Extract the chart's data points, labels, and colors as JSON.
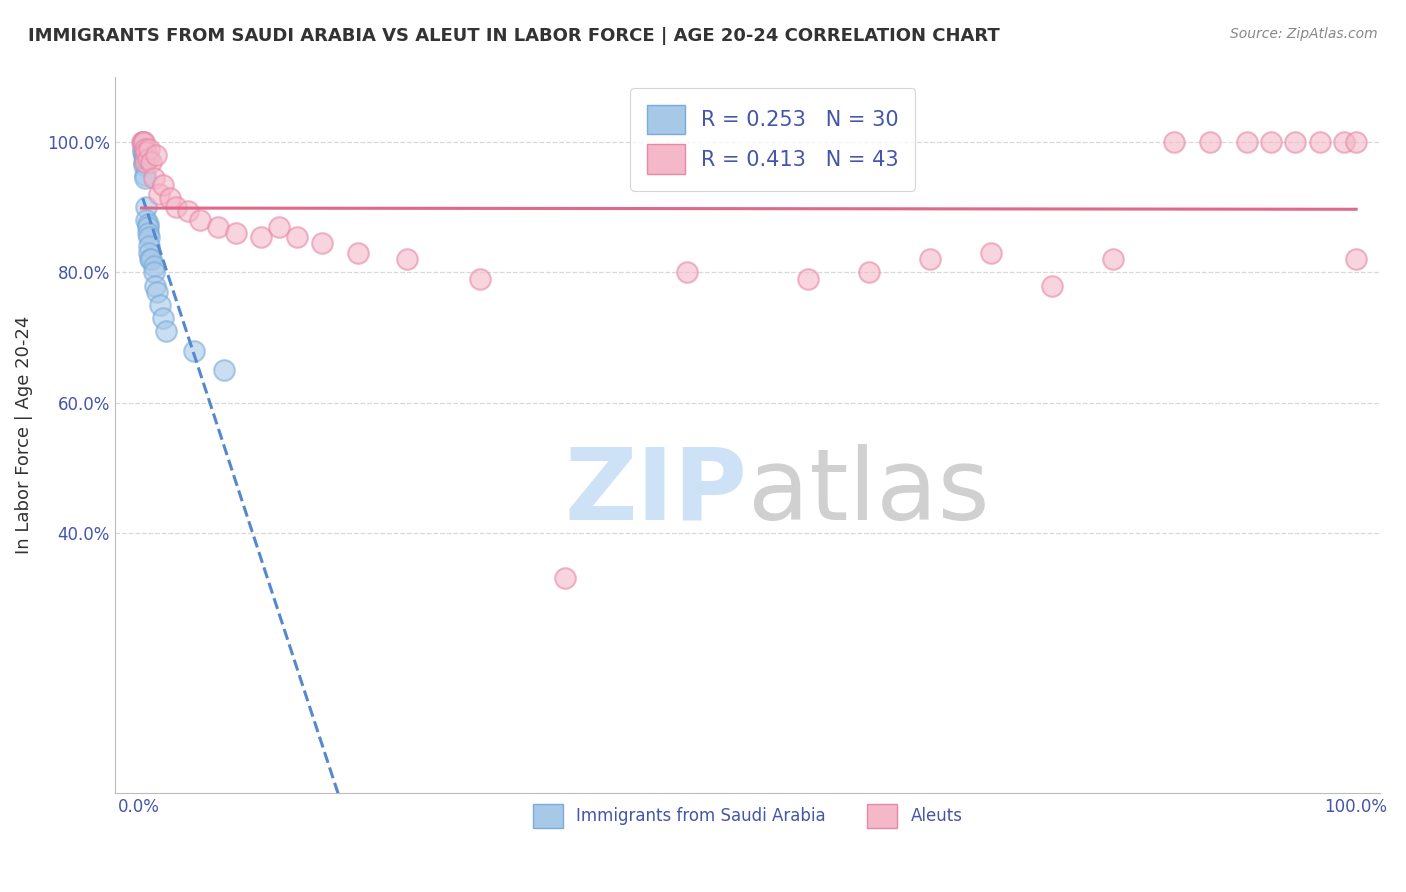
{
  "title": "IMMIGRANTS FROM SAUDI ARABIA VS ALEUT IN LABOR FORCE | AGE 20-24 CORRELATION CHART",
  "source": "Source: ZipAtlas.com",
  "xlabel": "",
  "ylabel": "In Labor Force | Age 20-24",
  "xlim": [
    -0.02,
    1.02
  ],
  "ylim": [
    0.0,
    1.1
  ],
  "xticks": [
    0.0,
    1.0
  ],
  "xticklabels": [
    "0.0%",
    "100.0%"
  ],
  "ytick_positions": [
    0.4,
    0.6,
    0.8,
    1.0
  ],
  "ytick_labels": [
    "40.0%",
    "60.0%",
    "80.0%",
    "100.0%"
  ],
  "blue_color": "#a8c8e8",
  "blue_edge_color": "#7aabda",
  "pink_color": "#f4b8c8",
  "pink_edge_color": "#e888a8",
  "blue_line_color": "#5588cc",
  "pink_line_color": "#e06888",
  "blue_R": 0.253,
  "blue_N": 30,
  "pink_R": 0.413,
  "pink_N": 43,
  "blue_scatter_x": [
    0.003,
    0.003,
    0.003,
    0.004,
    0.004,
    0.004,
    0.005,
    0.005,
    0.005,
    0.005,
    0.005,
    0.006,
    0.006,
    0.007,
    0.007,
    0.007,
    0.008,
    0.008,
    0.008,
    0.009,
    0.01,
    0.012,
    0.012,
    0.013,
    0.015,
    0.017,
    0.02,
    0.022,
    0.045,
    0.07
  ],
  "blue_scatter_y": [
    1.0,
    0.99,
    0.985,
    0.98,
    0.97,
    0.965,
    0.99,
    0.98,
    0.975,
    0.95,
    0.945,
    0.9,
    0.88,
    0.875,
    0.87,
    0.86,
    0.855,
    0.84,
    0.83,
    0.82,
    0.82,
    0.81,
    0.8,
    0.78,
    0.77,
    0.75,
    0.73,
    0.71,
    0.68,
    0.65
  ],
  "pink_scatter_x": [
    0.002,
    0.003,
    0.004,
    0.005,
    0.005,
    0.006,
    0.007,
    0.008,
    0.01,
    0.012,
    0.014,
    0.016,
    0.02,
    0.025,
    0.03,
    0.04,
    0.05,
    0.065,
    0.08,
    0.1,
    0.115,
    0.13,
    0.15,
    0.18,
    0.22,
    0.28,
    0.35,
    0.45,
    0.55,
    0.6,
    0.65,
    0.7,
    0.75,
    0.8,
    0.85,
    0.88,
    0.91,
    0.93,
    0.95,
    0.97,
    0.99,
    1.0,
    1.0
  ],
  "pink_scatter_y": [
    1.0,
    1.0,
    1.0,
    0.99,
    0.97,
    0.985,
    0.975,
    0.99,
    0.97,
    0.945,
    0.98,
    0.92,
    0.935,
    0.915,
    0.9,
    0.895,
    0.88,
    0.87,
    0.86,
    0.855,
    0.87,
    0.855,
    0.845,
    0.83,
    0.82,
    0.79,
    0.33,
    0.8,
    0.79,
    0.8,
    0.82,
    0.83,
    0.78,
    0.82,
    1.0,
    1.0,
    1.0,
    1.0,
    1.0,
    1.0,
    1.0,
    1.0,
    0.82
  ],
  "watermark_zip_color": "#c5ddf5",
  "watermark_atlas_color": "#c8c8c8",
  "background_color": "#ffffff",
  "grid_color": "#d8d8d8"
}
